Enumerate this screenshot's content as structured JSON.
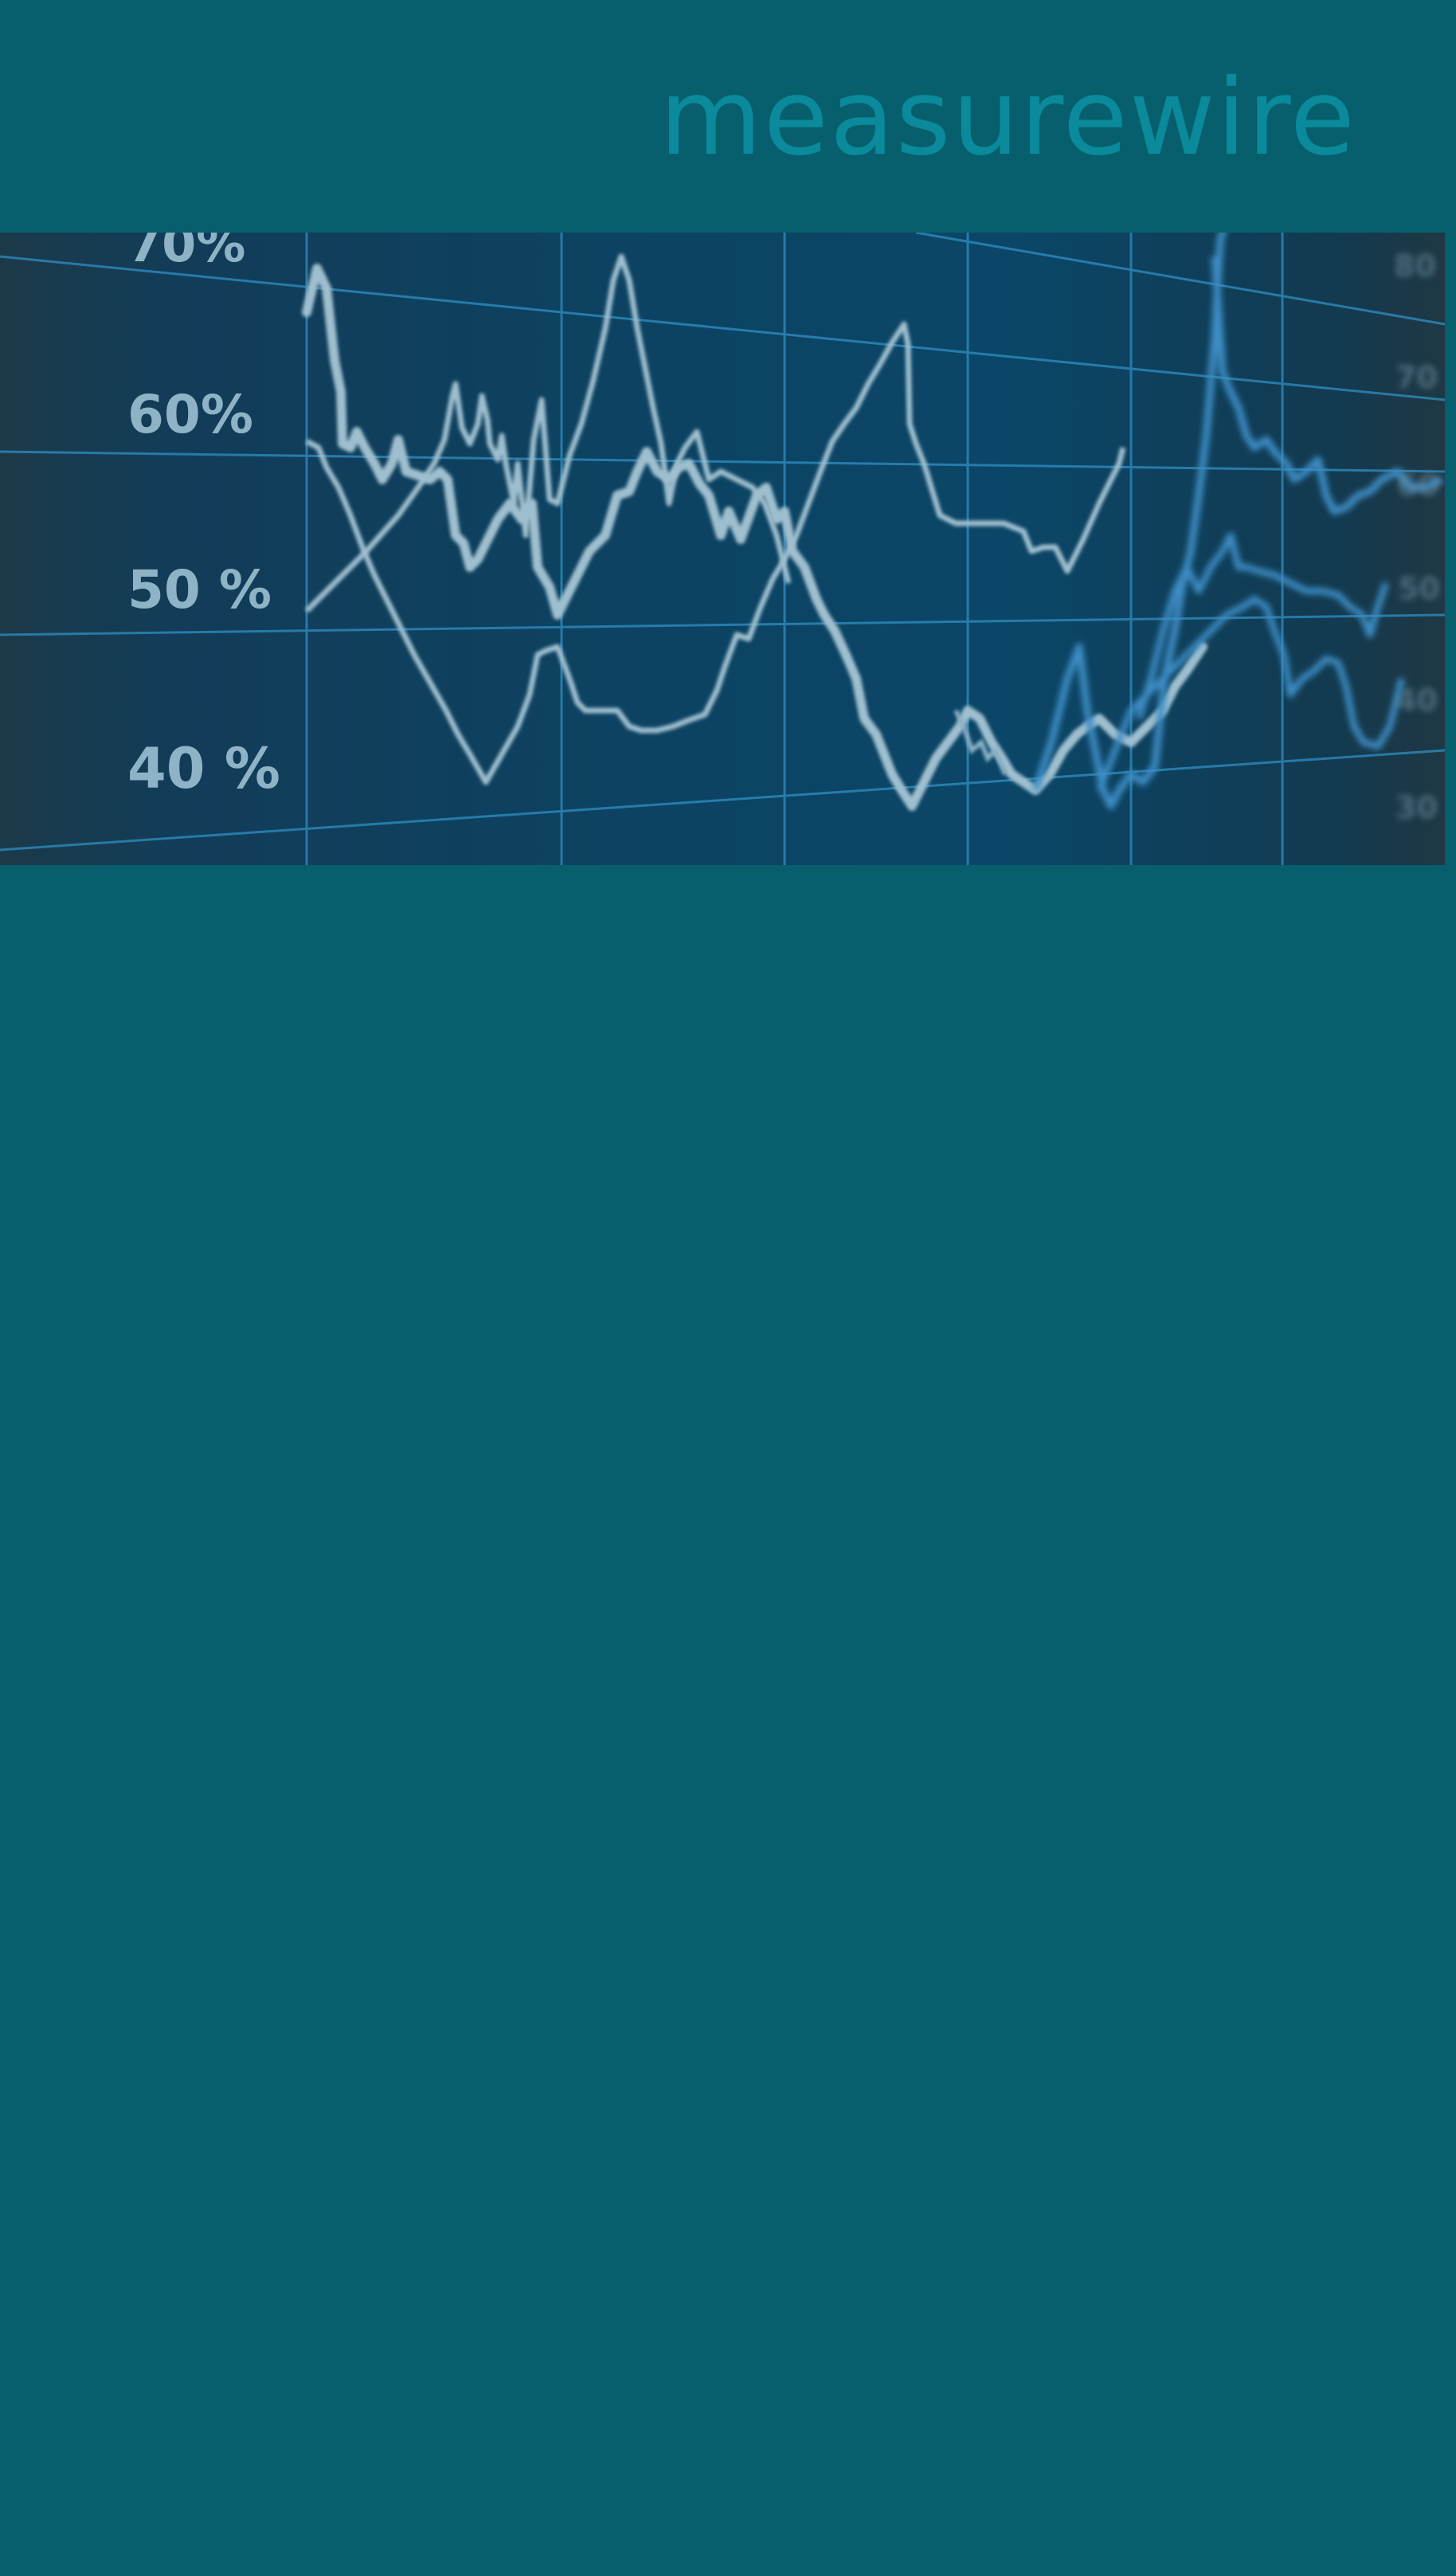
{
  "header": {
    "logo_text": "measurewire",
    "colors": {
      "background": "#075f6d",
      "logo": "#0a8a9b"
    }
  },
  "hero": {
    "icon": "stock-chart-photo",
    "y_tick_labels": [
      "70%",
      "60%",
      "50 %",
      "40 %"
    ],
    "colors": {
      "grid": "#2f8fc4",
      "bright_line": "#9fc0d0",
      "blue_line": "#3d8ec7"
    }
  },
  "colors": {
    "page_background": "#075f6d"
  }
}
